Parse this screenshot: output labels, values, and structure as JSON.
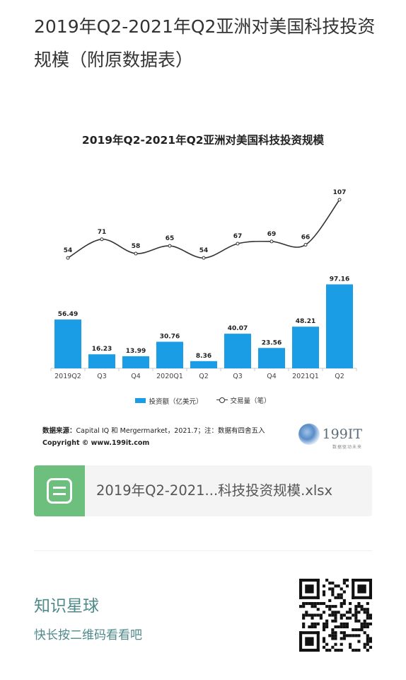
{
  "page": {
    "title": "2019年Q2-2021年Q2亚洲对美国科技投资规模（附原数据表）"
  },
  "chart_data": {
    "type": "bar",
    "title": "2019年Q2-2021年Q2亚洲对美国科技投资规模",
    "categories": [
      "2019Q2",
      "Q3",
      "Q4",
      "2020Q1",
      "Q2",
      "Q3",
      "Q4",
      "2021Q1",
      "Q2"
    ],
    "series": [
      {
        "name": "投资额（亿美元）",
        "type": "bar",
        "color": "#1b9de5",
        "values": [
          56.49,
          16.23,
          13.99,
          30.76,
          8.36,
          40.07,
          23.56,
          48.21,
          97.16
        ]
      },
      {
        "name": "交易量（笔）",
        "type": "line",
        "color": "#333333",
        "values": [
          54,
          71,
          58,
          65,
          54,
          67,
          69,
          66,
          107
        ]
      }
    ],
    "legend_position": "bottom",
    "grid": false
  },
  "source": {
    "label": "数据来源：",
    "text": "Capital IQ 和 Mergermarket，2021.7；注：数据有四舍五入",
    "copyright": "Copyright © www.199it.com"
  },
  "logo": {
    "text": "199IT",
    "sub": "数据驱动未来"
  },
  "file": {
    "name": "2019年Q2-2021...科技投资规模.xlsx"
  },
  "knowledge": {
    "title": "知识星球",
    "subtitle": "快长按二维码看看吧"
  }
}
